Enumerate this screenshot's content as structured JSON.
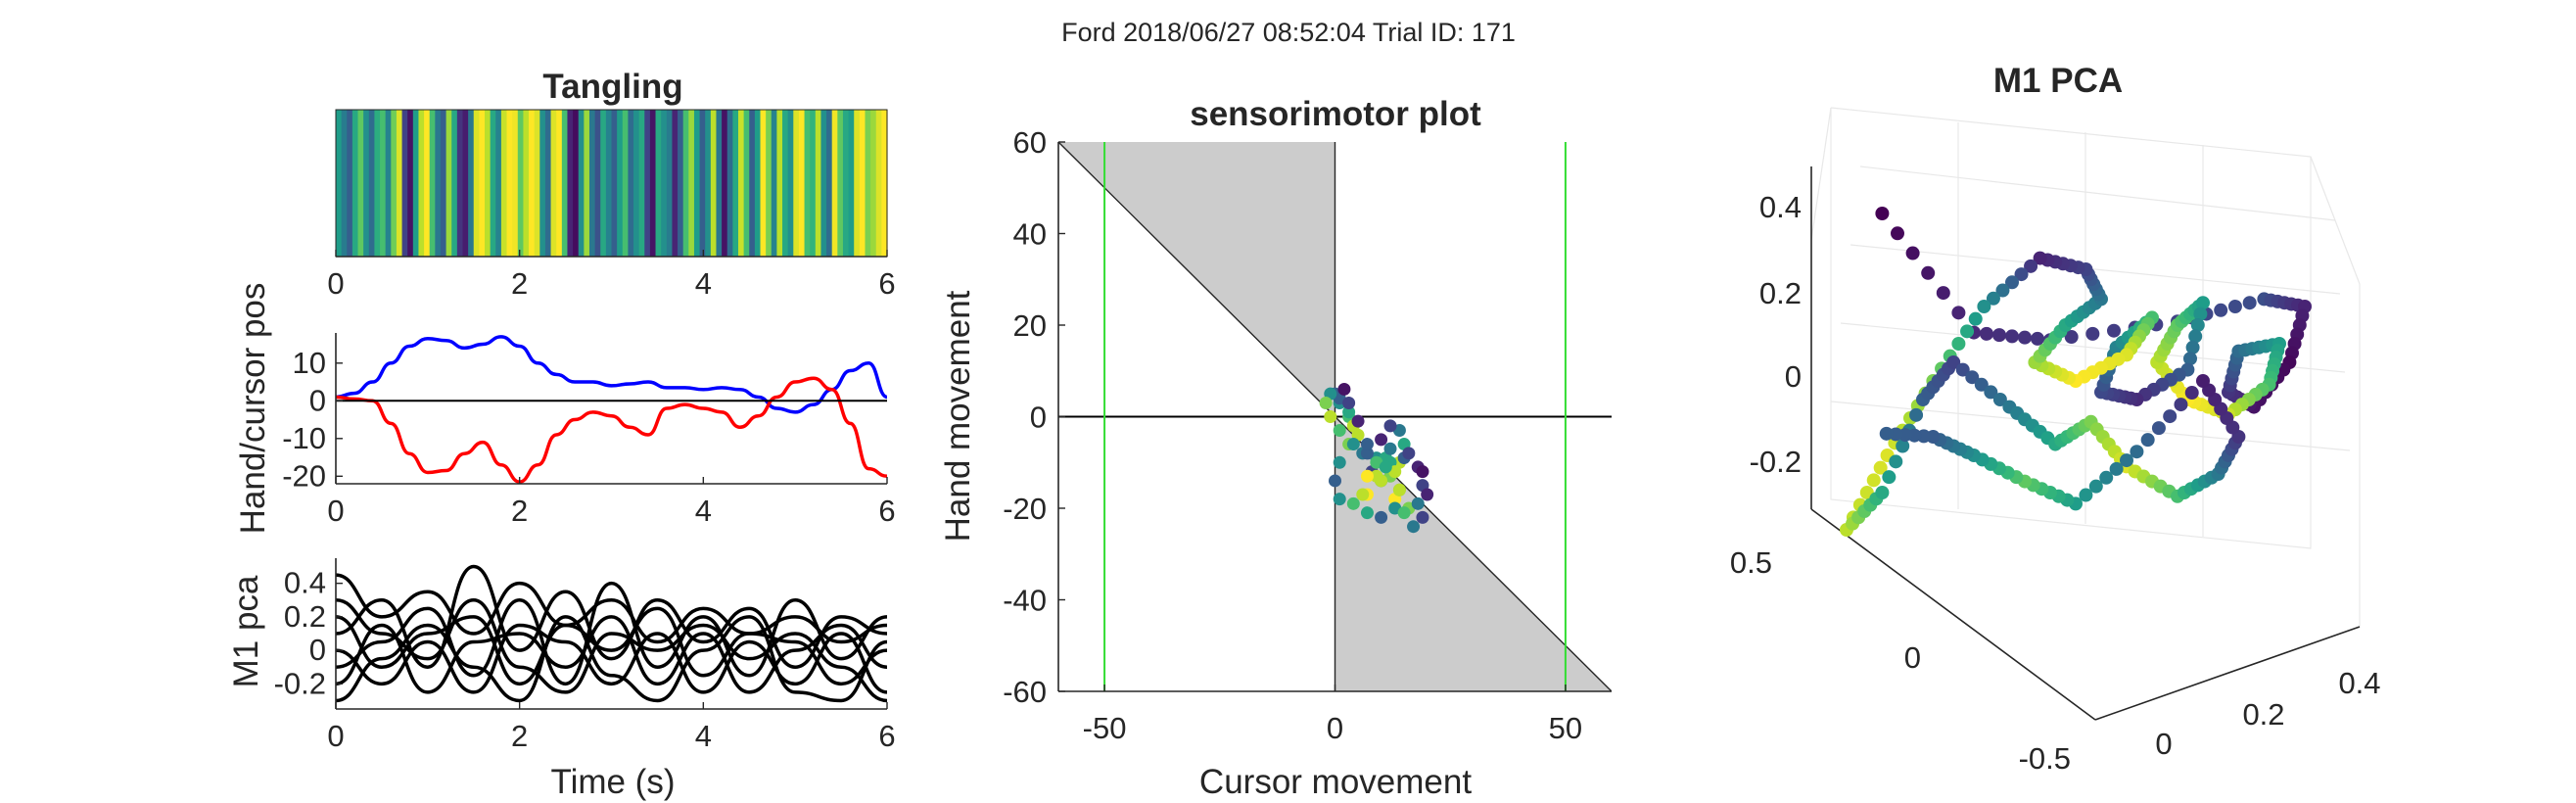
{
  "suptitle": "Ford 2018/06/27 08:52:04 Trial ID: 171",
  "chart_data": [
    {
      "id": "tangling",
      "type": "heatmap",
      "title": "Tangling",
      "xlim": [
        0,
        6
      ],
      "xticks": [
        "0",
        "2",
        "4",
        "6"
      ],
      "colormap": "viridis",
      "values": [
        0.55,
        0.42,
        0.3,
        0.6,
        0.75,
        0.5,
        0.35,
        0.62,
        0.7,
        0.45,
        0.78,
        0.95,
        0.2,
        0.05,
        0.55,
        0.9,
        1.0,
        0.7,
        0.4,
        0.3,
        0.85,
        0.6,
        0.15,
        0.08,
        0.4,
        0.95,
        1.0,
        0.9,
        0.6,
        0.45,
        0.92,
        1.0,
        0.98,
        0.75,
        0.9,
        1.0,
        0.95,
        0.5,
        0.35,
        0.95,
        1.0,
        0.7,
        0.1,
        0.03,
        0.5,
        0.85,
        0.4,
        0.25,
        0.6,
        0.45,
        0.3,
        0.55,
        0.7,
        0.35,
        0.5,
        0.6,
        0.2,
        0.05,
        0.6,
        0.5,
        0.42,
        0.1,
        0.3,
        0.7,
        0.85,
        0.55,
        0.3,
        0.5,
        0.9,
        0.4,
        0.05,
        0.35,
        0.6,
        0.92,
        0.7,
        0.3,
        0.55,
        1.0,
        0.8,
        0.45,
        0.9,
        0.6,
        0.5,
        0.95,
        1.0,
        0.7,
        0.65,
        0.9,
        0.5,
        0.35,
        0.98,
        0.75,
        0.6,
        0.55,
        0.95,
        1.0,
        0.8,
        0.85,
        0.95,
        1.0
      ]
    },
    {
      "id": "hand-cursor",
      "type": "line",
      "ylabel": "Hand/cursor pos",
      "xlim": [
        0,
        6
      ],
      "ylim": [
        -22,
        18
      ],
      "xticks": [
        "0",
        "2",
        "4",
        "6"
      ],
      "yticks": [
        "10",
        "0",
        "-10",
        "-20"
      ],
      "ytick_values": [
        10,
        0,
        -10,
        -20
      ],
      "series": [
        {
          "color": "#0000ff",
          "x": [
            0,
            0.2,
            0.4,
            0.6,
            0.8,
            1.0,
            1.2,
            1.4,
            1.6,
            1.8,
            2.0,
            2.2,
            2.4,
            2.6,
            2.8,
            3.0,
            3.2,
            3.4,
            3.6,
            3.8,
            4.0,
            4.2,
            4.4,
            4.6,
            4.8,
            5.0,
            5.2,
            5.4,
            5.6,
            5.8,
            6.0
          ],
          "y": [
            1,
            2,
            5,
            10,
            14.5,
            16.5,
            16,
            14,
            15,
            17,
            14.5,
            10,
            7,
            5,
            5,
            4,
            4.5,
            5,
            3.5,
            3.5,
            3,
            3.5,
            3,
            1,
            -2,
            -3,
            -1,
            3,
            8,
            10,
            1
          ]
        },
        {
          "color": "#ff0000",
          "x": [
            0,
            0.2,
            0.4,
            0.6,
            0.8,
            1.0,
            1.2,
            1.4,
            1.6,
            1.8,
            2.0,
            2.2,
            2.4,
            2.6,
            2.8,
            3.0,
            3.2,
            3.4,
            3.6,
            3.8,
            4.0,
            4.2,
            4.4,
            4.6,
            4.8,
            5.0,
            5.2,
            5.4,
            5.6,
            5.8,
            6.0
          ],
          "y": [
            1,
            0.5,
            0,
            -6,
            -14,
            -19,
            -18.5,
            -14,
            -11,
            -17,
            -21.5,
            -17,
            -9,
            -5,
            -3,
            -4,
            -7,
            -9,
            -2,
            -1,
            -2,
            -3,
            -7,
            -4,
            1,
            5,
            6,
            3,
            -6,
            -18,
            -20
          ]
        },
        {
          "color": "#000000",
          "x": [
            0,
            6
          ],
          "y": [
            0,
            0
          ]
        }
      ]
    },
    {
      "id": "m1-pca-traces",
      "type": "line",
      "ylabel": "M1 pca",
      "xlabel": "Time (s)",
      "xlim": [
        0,
        6
      ],
      "ylim": [
        -0.35,
        0.55
      ],
      "xticks": [
        "0",
        "2",
        "4",
        "6"
      ],
      "yticks": [
        "0.4",
        "0.2",
        "0",
        "-0.2"
      ],
      "ytick_values": [
        0.4,
        0.2,
        0,
        -0.2
      ],
      "series": [
        {
          "color": "#000000",
          "x": [
            0,
            0.5,
            1,
            1.5,
            2,
            2.5,
            3,
            3.5,
            4,
            4.5,
            5,
            5.5,
            6
          ],
          "y": [
            0.45,
            0.2,
            0.35,
            0.1,
            0.4,
            0.15,
            0.3,
            0.05,
            0.25,
            0.1,
            0.2,
            0.05,
            0.15
          ]
        },
        {
          "color": "#000000",
          "x": [
            0,
            0.5,
            1,
            1.5,
            2,
            2.5,
            3,
            3.5,
            4,
            4.5,
            5,
            5.5,
            6
          ],
          "y": [
            0.1,
            0.3,
            -0.1,
            0.5,
            0.0,
            0.35,
            -0.05,
            0.3,
            0.05,
            0.25,
            -0.1,
            0.2,
            0.1
          ]
        },
        {
          "color": "#000000",
          "x": [
            0,
            0.5,
            1,
            1.5,
            2,
            2.5,
            3,
            3.5,
            4,
            4.5,
            5,
            5.5,
            6
          ],
          "y": [
            -0.1,
            0.05,
            0.25,
            -0.15,
            0.3,
            -0.2,
            0.4,
            -0.1,
            0.2,
            -0.15,
            0.3,
            -0.05,
            0.2
          ]
        },
        {
          "color": "#000000",
          "x": [
            0,
            0.5,
            1,
            1.5,
            2,
            2.5,
            3,
            3.5,
            4,
            4.5,
            5,
            5.5,
            6
          ],
          "y": [
            0.2,
            -0.1,
            0.1,
            0.2,
            -0.2,
            0.15,
            0.0,
            0.25,
            -0.15,
            0.1,
            0.05,
            -0.2,
            0.0
          ]
        },
        {
          "color": "#000000",
          "x": [
            0,
            0.5,
            1,
            1.5,
            2,
            2.5,
            3,
            3.5,
            4,
            4.5,
            5,
            5.5,
            6
          ],
          "y": [
            -0.2,
            0.15,
            -0.25,
            0.05,
            0.1,
            -0.1,
            0.2,
            -0.2,
            0.1,
            -0.25,
            0.0,
            0.15,
            -0.1
          ]
        },
        {
          "color": "#000000",
          "x": [
            0,
            0.5,
            1,
            1.5,
            2,
            2.5,
            3,
            3.5,
            4,
            4.5,
            5,
            5.5,
            6
          ],
          "y": [
            0.0,
            -0.2,
            0.05,
            -0.25,
            0.15,
            0.05,
            -0.2,
            0.1,
            -0.25,
            0.05,
            -0.2,
            0.1,
            -0.25
          ]
        },
        {
          "color": "#000000",
          "x": [
            0,
            0.5,
            1,
            1.5,
            2,
            2.5,
            3,
            3.5,
            4,
            4.5,
            5,
            5.5,
            6
          ],
          "y": [
            0.3,
            0.1,
            -0.05,
            0.3,
            -0.1,
            -0.25,
            0.1,
            0.0,
            0.15,
            -0.05,
            0.1,
            -0.1,
            -0.3
          ]
        },
        {
          "color": "#000000",
          "x": [
            0,
            0.5,
            1,
            1.5,
            2,
            2.5,
            3,
            3.5,
            4,
            4.5,
            5,
            5.5,
            6
          ],
          "y": [
            -0.3,
            -0.05,
            0.15,
            -0.1,
            -0.3,
            0.2,
            -0.15,
            -0.3,
            0.0,
            0.2,
            -0.25,
            -0.3,
            0.05
          ]
        }
      ]
    },
    {
      "id": "sensorimotor",
      "type": "scatter",
      "title": "sensorimotor plot",
      "xlabel": "Cursor movement",
      "ylabel": "Hand movement",
      "xlim": [
        -60,
        60
      ],
      "ylim": [
        -60,
        60
      ],
      "xticks": [
        "-50",
        "0",
        "50"
      ],
      "xtick_values": [
        -50,
        0,
        50
      ],
      "yticks": [
        "60",
        "40",
        "20",
        "0",
        "-20",
        "-40",
        "-60"
      ],
      "ytick_values": [
        60,
        40,
        20,
        0,
        -20,
        -40,
        -60
      ],
      "vlines": {
        "color": "#33dd33",
        "x": [
          -50,
          50
        ]
      },
      "shaded_regions": "gray: between y=-x and x=0",
      "points": [
        [
          0,
          5,
          0.3
        ],
        [
          1,
          3,
          0.5
        ],
        [
          3,
          0,
          0.7
        ],
        [
          5,
          -4,
          0.9
        ],
        [
          6,
          -8,
          0.4
        ],
        [
          8,
          -12,
          0.2
        ],
        [
          10,
          -14,
          0.5
        ],
        [
          12,
          -13,
          0.8
        ],
        [
          14,
          -10,
          0.9
        ],
        [
          15,
          -6,
          0.6
        ],
        [
          14,
          -3,
          0.4
        ],
        [
          12,
          -2,
          0.2
        ],
        [
          10,
          -5,
          0.1
        ],
        [
          9,
          -9,
          0.5
        ],
        [
          10,
          -14,
          0.9
        ],
        [
          13,
          -18,
          1.0
        ],
        [
          16,
          -20,
          0.8
        ],
        [
          18,
          -19,
          0.4
        ],
        [
          19,
          -15,
          0.2
        ],
        [
          18,
          -11,
          0.1
        ],
        [
          15,
          -9,
          0.3
        ],
        [
          12,
          -10,
          0.6
        ],
        [
          9,
          -13,
          0.9
        ],
        [
          7,
          -17,
          1.0
        ],
        [
          4,
          -19,
          0.7
        ],
        [
          1,
          -18,
          0.5
        ],
        [
          0,
          -14,
          0.3
        ],
        [
          1,
          -10,
          0.5
        ],
        [
          3,
          -6,
          0.8
        ],
        [
          4,
          -2,
          0.9
        ],
        [
          3,
          1,
          0.6
        ],
        [
          1,
          4,
          0.3
        ],
        [
          -1,
          5,
          0.5
        ],
        [
          -2,
          3,
          0.8
        ],
        [
          -1,
          0,
          0.9
        ],
        [
          1,
          -3,
          0.7
        ],
        [
          4,
          -6,
          0.5
        ],
        [
          7,
          -8,
          0.3
        ],
        [
          11,
          -9,
          0.6
        ],
        [
          13,
          -12,
          0.9
        ],
        [
          14,
          -16,
          0.8
        ],
        [
          13,
          -20,
          0.5
        ],
        [
          10,
          -22,
          0.3
        ],
        [
          7,
          -21,
          0.6
        ],
        [
          6,
          -17,
          0.9
        ],
        [
          7,
          -13,
          1.0
        ],
        [
          9,
          -10,
          0.7
        ],
        [
          12,
          -7,
          0.4
        ],
        [
          16,
          -8,
          0.2
        ],
        [
          19,
          -12,
          0.05
        ],
        [
          20,
          -17,
          0.1
        ],
        [
          19,
          -22,
          0.2
        ],
        [
          17,
          -24,
          0.4
        ],
        [
          15,
          -21,
          0.7
        ],
        [
          14,
          -16,
          0.9
        ],
        [
          11,
          -11,
          0.6
        ],
        [
          7,
          -6,
          0.3
        ],
        [
          5,
          -1,
          0.1
        ],
        [
          3,
          3,
          0.2
        ],
        [
          2,
          6,
          0.05
        ]
      ]
    },
    {
      "id": "m1-pca-3d",
      "type": "scatter",
      "title": "M1 PCA",
      "colormap": "viridis",
      "zticks": [
        "0.4",
        "0.2",
        "0",
        "-0.2"
      ],
      "yticks": [
        "0.5",
        "0",
        "-0.5"
      ],
      "xticks": [
        "0",
        "0.2",
        "0.4"
      ],
      "points": [
        [
          0.12,
          0.1,
          0.0
        ],
        [
          0.3,
          0.42,
          0.12
        ],
        [
          0.45,
          0.44,
          0.16
        ],
        [
          0.7,
          0.39,
          0.2
        ],
        [
          0.87,
          0.33,
          0.24
        ],
        [
          0.95,
          0.35,
          0.1
        ],
        [
          0.92,
          0.5,
          0.02
        ],
        [
          0.85,
          0.62,
          0.05
        ],
        [
          0.8,
          0.58,
          0.15
        ],
        [
          0.82,
          0.47,
          0.35
        ],
        [
          0.9,
          0.45,
          0.55
        ],
        [
          0.88,
          0.56,
          0.7
        ],
        [
          0.8,
          0.64,
          0.92
        ],
        [
          0.72,
          0.6,
          1.0
        ],
        [
          0.66,
          0.5,
          0.9
        ],
        [
          0.7,
          0.4,
          0.75
        ],
        [
          0.75,
          0.34,
          0.55
        ],
        [
          0.72,
          0.52,
          0.3
        ],
        [
          0.62,
          0.6,
          0.12
        ],
        [
          0.55,
          0.58,
          0.22
        ],
        [
          0.58,
          0.46,
          0.45
        ],
        [
          0.65,
          0.38,
          0.7
        ],
        [
          0.6,
          0.48,
          0.95
        ],
        [
          0.5,
          0.55,
          1.0
        ],
        [
          0.42,
          0.5,
          0.85
        ],
        [
          0.48,
          0.4,
          0.6
        ],
        [
          0.55,
          0.33,
          0.4
        ],
        [
          0.52,
          0.25,
          0.2
        ],
        [
          0.43,
          0.22,
          0.1
        ],
        [
          0.32,
          0.35,
          0.5
        ],
        [
          0.22,
          0.55,
          0.8
        ],
        [
          0.13,
          0.75,
          0.95
        ],
        [
          0.05,
          0.95,
          0.9
        ],
        [
          0.12,
          0.85,
          0.6
        ],
        [
          0.2,
          0.6,
          0.3
        ],
        [
          0.26,
          0.5,
          0.2
        ],
        [
          0.37,
          0.62,
          0.4
        ],
        [
          0.46,
          0.72,
          0.6
        ],
        [
          0.53,
          0.66,
          0.8
        ],
        [
          0.6,
          0.78,
          0.95
        ],
        [
          0.7,
          0.86,
          0.7
        ],
        [
          0.78,
          0.8,
          0.4
        ],
        [
          0.82,
          0.7,
          0.15
        ],
        [
          0.75,
          0.55,
          0.08
        ],
        [
          0.62,
          0.74,
          0.35
        ],
        [
          0.5,
          0.88,
          0.55
        ],
        [
          0.4,
          0.82,
          0.75
        ],
        [
          0.3,
          0.75,
          0.5
        ],
        [
          0.22,
          0.7,
          0.28
        ],
        [
          0.11,
          0.69,
          0.3
        ]
      ]
    }
  ]
}
